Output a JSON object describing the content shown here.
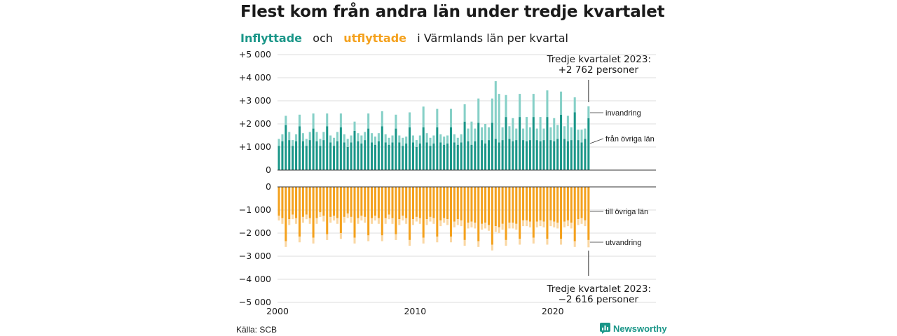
{
  "title": "Flest kom från andra län under tredje kvartalet",
  "subtitle": {
    "part1": "Inflyttade",
    "part2": "och",
    "part3": "utflyttade",
    "part4": "i Värmlands län per kvartal"
  },
  "source": "Källa: SCB",
  "brand": "Newsworthy",
  "colors": {
    "in_dark": "#1a9688",
    "in_light": "#86d0c7",
    "out_dark": "#f4a11d",
    "out_light": "#fad7a3",
    "grid": "#dddddd",
    "axis": "#333333"
  },
  "chart_data": {
    "type": "bar",
    "subtype": "stacked-diverging",
    "x_start": 2000,
    "x_step": 0.25,
    "x_ticks": [
      "2000",
      "2010",
      "2020"
    ],
    "top_panel": {
      "ylim": [
        0,
        5000
      ],
      "y_ticks": [
        "0",
        "+1 000",
        "+2 000",
        "+3 000",
        "+4 000",
        "+5 000"
      ],
      "series": [
        {
          "name": "från övriga län",
          "values": [
            1050,
            1250,
            1950,
            1300,
            1050,
            1250,
            1900,
            1250,
            1050,
            1300,
            1800,
            1250,
            1050,
            1300,
            1900,
            1200,
            1050,
            1250,
            1850,
            1200,
            1000,
            1200,
            1700,
            1250,
            1150,
            1300,
            1800,
            1200,
            1100,
            1250,
            1900,
            1200,
            1100,
            1200,
            1800,
            1200,
            1050,
            1150,
            1850,
            1200,
            1000,
            1150,
            1850,
            1200,
            1050,
            1150,
            1850,
            1200,
            1100,
            1150,
            1850,
            1200,
            1100,
            1200,
            2100,
            1250,
            1100,
            1250,
            2050,
            1300,
            1150,
            1300,
            2050,
            1350,
            1200,
            1300,
            2300,
            1350,
            1250,
            1300,
            2300,
            1300,
            1250,
            1300,
            2300,
            1300,
            1250,
            1300,
            2300,
            1300,
            1250,
            1350,
            2400,
            1350,
            1250,
            1300,
            2500,
            1300,
            1200,
            1350,
            2250
          ]
        },
        {
          "name": "invandring",
          "values": [
            300,
            300,
            400,
            350,
            250,
            300,
            500,
            350,
            300,
            350,
            650,
            400,
            300,
            350,
            550,
            300,
            350,
            400,
            600,
            350,
            350,
            300,
            400,
            350,
            350,
            350,
            650,
            400,
            350,
            350,
            650,
            350,
            300,
            300,
            600,
            300,
            350,
            300,
            650,
            300,
            300,
            350,
            900,
            400,
            350,
            350,
            800,
            350,
            350,
            350,
            800,
            350,
            300,
            350,
            750,
            550,
            1000,
            550,
            1050,
            550,
            850,
            550,
            1050,
            2500,
            2100,
            550,
            950,
            550,
            1000,
            500,
            1000,
            500,
            1050,
            550,
            1000,
            500,
            1050,
            500,
            1150,
            550,
            1000,
            600,
            1000,
            550,
            1100,
            550,
            650,
            450,
            550,
            450,
            512
          ]
        }
      ],
      "annotation": {
        "line1": "Tredje kvartalet 2023:",
        "line2": "+2 762 personer"
      },
      "labels": {
        "upper": "invandring",
        "lower": "från övriga län"
      }
    },
    "bottom_panel": {
      "ylim": [
        -5000,
        0
      ],
      "y_ticks": [
        "0",
        "−1 000",
        "−2 000",
        "−3 000",
        "−4 000",
        "−5 000"
      ],
      "series": [
        {
          "name": "till övriga län",
          "values": [
            -1250,
            -1350,
            -2350,
            -1400,
            -1200,
            -1350,
            -2150,
            -1300,
            -1200,
            -1350,
            -2200,
            -1350,
            -1100,
            -1250,
            -2050,
            -1300,
            -1250,
            -1350,
            -2000,
            -1300,
            -1150,
            -1300,
            -2200,
            -1350,
            -1250,
            -1300,
            -2100,
            -1350,
            -1250,
            -1350,
            -2100,
            -1350,
            -1200,
            -1350,
            -2050,
            -1400,
            -1250,
            -1350,
            -2300,
            -1400,
            -1300,
            -1350,
            -2200,
            -1400,
            -1300,
            -1350,
            -2150,
            -1450,
            -1350,
            -1400,
            -2150,
            -1500,
            -1400,
            -1450,
            -2300,
            -1550,
            -1500,
            -1550,
            -2350,
            -1600,
            -1550,
            -1650,
            -2500,
            -1700,
            -1750,
            -1600,
            -2300,
            -1550,
            -1550,
            -1600,
            -2250,
            -1450,
            -1450,
            -1500,
            -2200,
            -1500,
            -1450,
            -1500,
            -2250,
            -1450,
            -1500,
            -1550,
            -2250,
            -1500,
            -1450,
            -1550,
            -2350,
            -1400,
            -1350,
            -1450,
            -2300
          ]
        },
        {
          "name": "utvandring",
          "values": [
            -200,
            -250,
            -250,
            -250,
            -200,
            -250,
            -250,
            -250,
            -200,
            -250,
            -250,
            -250,
            -200,
            -250,
            -250,
            -250,
            -200,
            -250,
            -250,
            -250,
            -200,
            -250,
            -250,
            -250,
            -200,
            -250,
            -250,
            -250,
            -200,
            -250,
            -250,
            -250,
            -200,
            -250,
            -250,
            -250,
            -200,
            -250,
            -250,
            -250,
            -200,
            -250,
            -250,
            -250,
            -200,
            -250,
            -250,
            -250,
            -200,
            -250,
            -250,
            -250,
            -250,
            -250,
            -250,
            -250,
            -250,
            -250,
            -250,
            -250,
            -250,
            -250,
            -250,
            -250,
            -250,
            -250,
            -250,
            -250,
            -250,
            -250,
            -250,
            -250,
            -250,
            -250,
            -250,
            -250,
            -250,
            -250,
            -250,
            -250,
            -250,
            -250,
            -250,
            -250,
            -250,
            -250,
            -250,
            -250,
            -250,
            -250,
            -316
          ]
        }
      ],
      "annotation": {
        "line1": "Tredje kvartalet 2023:",
        "line2": "−2 616 personer"
      },
      "labels": {
        "upper": "till övriga län",
        "lower": "utvandring"
      }
    }
  }
}
